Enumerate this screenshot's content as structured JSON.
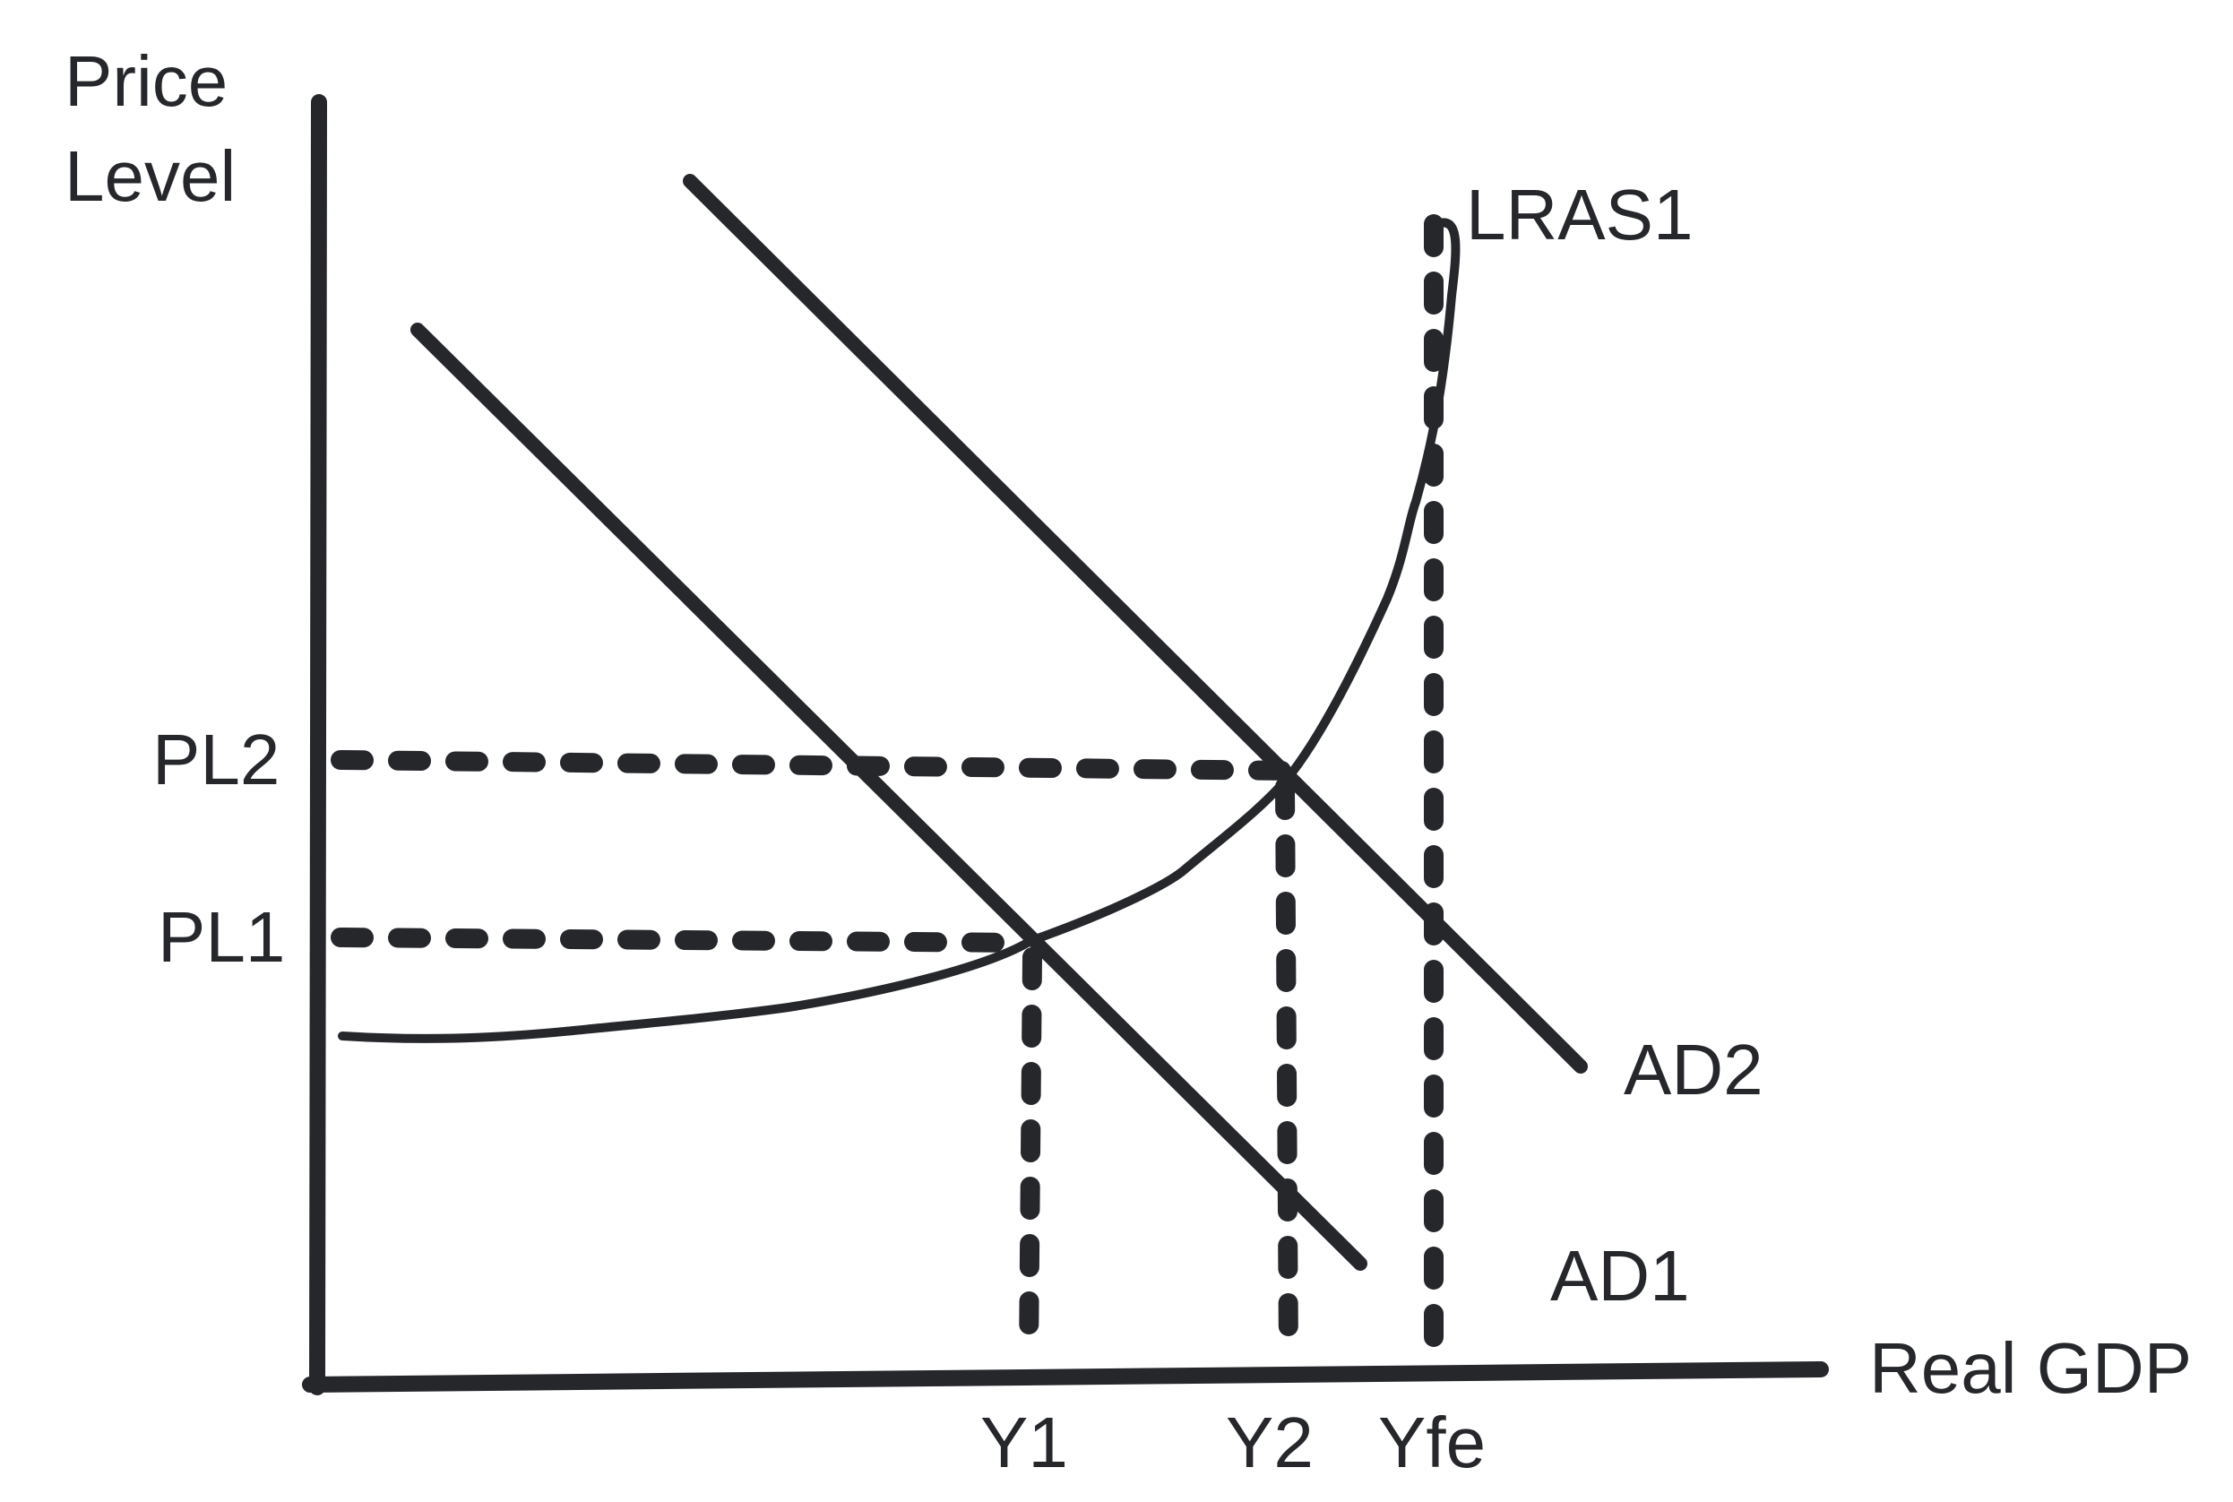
{
  "chart_data": {
    "type": "line",
    "title": "",
    "ylabel": "Price Level",
    "xlabel": "Real GDP",
    "x_ticks": [
      "Y1",
      "Y2",
      "Yfe"
    ],
    "y_ticks": [
      "PL2",
      "PL1"
    ],
    "series": [
      {
        "name": "LRAS1",
        "kind": "vertical"
      },
      {
        "name": "AD2",
        "kind": "downward-sloping"
      },
      {
        "name": "AD1",
        "kind": "downward-sloping"
      },
      {
        "kind": "upward-sloping curve (SRAS)"
      }
    ],
    "equilibria": [
      {
        "x": "Y1",
        "y": "PL1"
      },
      {
        "x": "Y2",
        "y": "PL2"
      }
    ],
    "grid": false,
    "legend": "none"
  },
  "colors": {
    "ink": "#25272b",
    "background": "#ffffff"
  }
}
